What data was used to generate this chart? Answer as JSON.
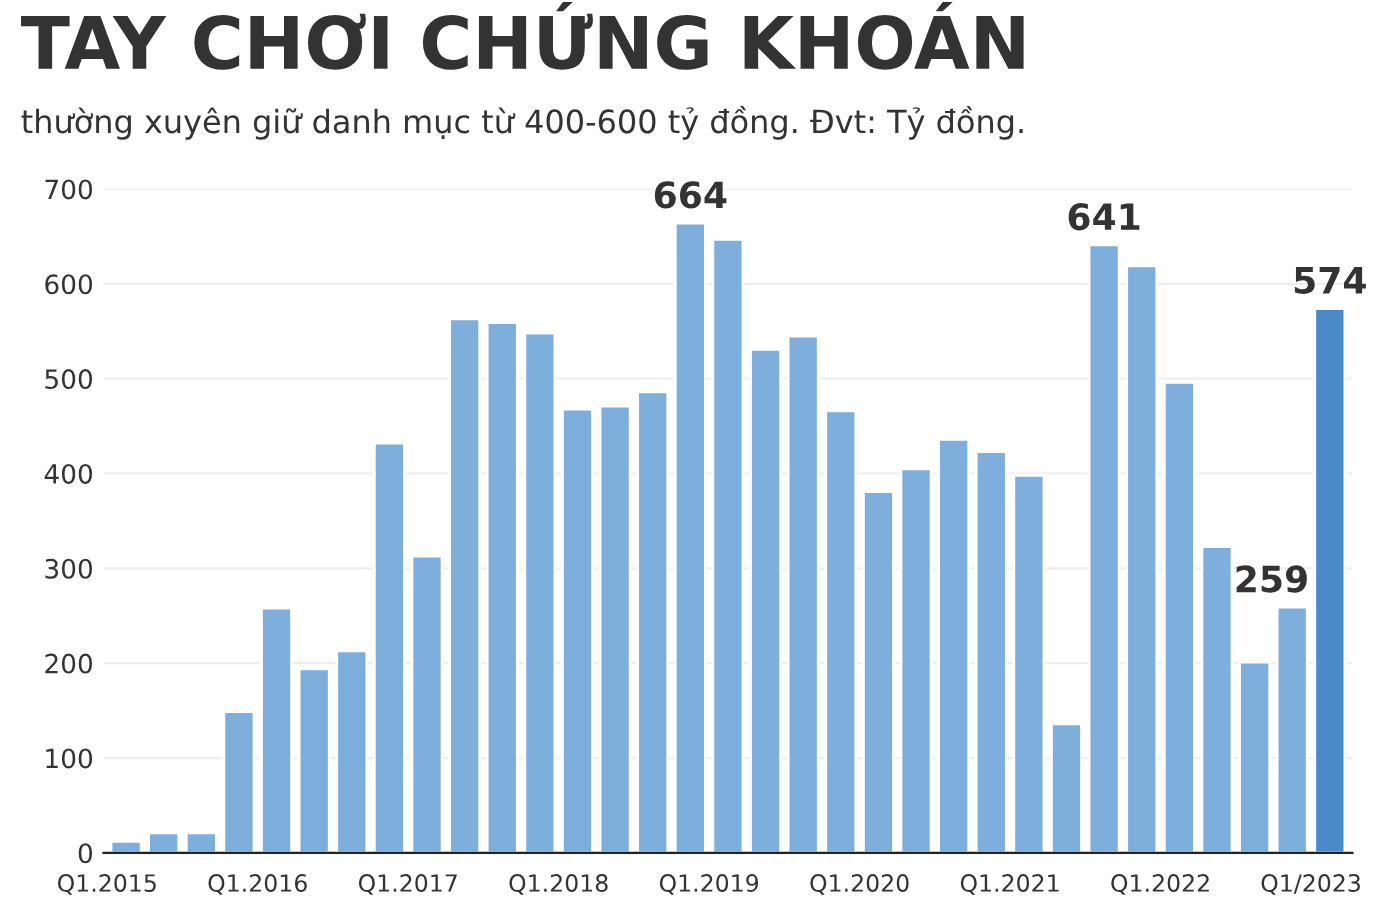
{
  "chart_data": {
    "type": "bar",
    "title": "TAY CHƠI CHỨNG KHOÁN",
    "subtitle": "thường xuyên giữ danh mục từ 400-600 tỷ đồng. Đvt: Tỷ đồng.",
    "categories": [
      "Q1.2015",
      null,
      null,
      null,
      "Q1.2016",
      null,
      null,
      null,
      "Q1.2017",
      null,
      null,
      null,
      "Q1.2018",
      null,
      null,
      null,
      "Q1.2019",
      null,
      null,
      null,
      "Q1.2020",
      null,
      null,
      null,
      "Q1.2021",
      null,
      null,
      null,
      "Q1.2022",
      null,
      null,
      null,
      "Q1/2023"
    ],
    "values": [
      12,
      21,
      21,
      149,
      258,
      194,
      213,
      432,
      313,
      563,
      559,
      548,
      468,
      471,
      486,
      664,
      647,
      531,
      545,
      466,
      381,
      405,
      436,
      423,
      398,
      136,
      641,
      619,
      496,
      323,
      201,
      259,
      574
    ],
    "colors": [
      "#7eaedb",
      "#7eaedb",
      "#7eaedb",
      "#7eaedb",
      "#7eaedb",
      "#7eaedb",
      "#7eaedb",
      "#7eaedb",
      "#7eaedb",
      "#7eaedb",
      "#7eaedb",
      "#7eaedb",
      "#7eaedb",
      "#7eaedb",
      "#7eaedb",
      "#7eaedb",
      "#7eaedb",
      "#7eaedb",
      "#7eaedb",
      "#7eaedb",
      "#7eaedb",
      "#7eaedb",
      "#7eaedb",
      "#7eaedb",
      "#7eaedb",
      "#7eaedb",
      "#7eaedb",
      "#7eaedb",
      "#7eaedb",
      "#7eaedb",
      "#7eaedb",
      "#7eaedb",
      "#4a8ac9"
    ],
    "value_labels": [
      null,
      null,
      null,
      null,
      null,
      null,
      null,
      null,
      null,
      null,
      null,
      null,
      null,
      null,
      null,
      "664",
      null,
      null,
      null,
      null,
      null,
      null,
      null,
      null,
      null,
      null,
      "641",
      null,
      null,
      null,
      null,
      "259",
      "574"
    ],
    "ylim": [
      0,
      700
    ],
    "yticks": [
      0,
      100,
      200,
      300,
      400,
      500,
      600,
      700
    ],
    "grid": "y"
  }
}
